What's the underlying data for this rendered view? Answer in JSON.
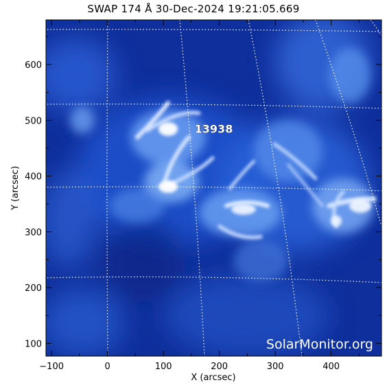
{
  "title": "SWAP 174 Å 30-Dec-2024 19:21:05.669",
  "x_axis": {
    "label": "X (arcsec)",
    "ticks": [
      -100,
      0,
      100,
      200,
      300,
      400
    ],
    "range": [
      -110,
      490
    ]
  },
  "y_axis": {
    "label": "Y (arcsec)",
    "ticks": [
      100,
      200,
      300,
      400,
      500,
      600
    ],
    "range": [
      77,
      680
    ]
  },
  "active_region": {
    "label": "13938",
    "x": 190,
    "y": 485
  },
  "watermark": "SolarMonitor.org",
  "colors": {
    "background": "#ffffff",
    "image_base": "#0f2f9c",
    "bright": "#e8f2ff",
    "grid": "#ffffff"
  },
  "grid": true
}
